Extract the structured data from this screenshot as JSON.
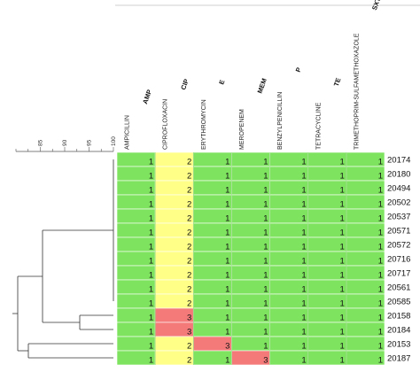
{
  "chart_data": {
    "type": "heatmap",
    "title": "",
    "antibiotics": [
      {
        "abbr": "AMP",
        "name": "AMPICILLIN"
      },
      {
        "abbr": "CIP",
        "name": "CIPROFLOXACIN"
      },
      {
        "abbr": "E",
        "name": "ERYTHROMYCIN"
      },
      {
        "abbr": "MEM",
        "name": "MEROPENEM"
      },
      {
        "abbr": "P",
        "name": "BENZYLPENICILLIN"
      },
      {
        "abbr": "TE",
        "name": "TETRACYCLINE"
      },
      {
        "abbr": "SXT",
        "name": "TRIMETHOPRIM-SULFAMETHOXAZOLE"
      }
    ],
    "isolates": [
      "20174",
      "20180",
      "20494",
      "20502",
      "20537",
      "20571",
      "20572",
      "20716",
      "20717",
      "20561",
      "20585",
      "20158",
      "20184",
      "20153",
      "20187"
    ],
    "values": [
      [
        1,
        2,
        1,
        1,
        1,
        1,
        1
      ],
      [
        1,
        2,
        1,
        1,
        1,
        1,
        1
      ],
      [
        1,
        2,
        1,
        1,
        1,
        1,
        1
      ],
      [
        1,
        2,
        1,
        1,
        1,
        1,
        1
      ],
      [
        1,
        2,
        1,
        1,
        1,
        1,
        1
      ],
      [
        1,
        2,
        1,
        1,
        1,
        1,
        1
      ],
      [
        1,
        2,
        1,
        1,
        1,
        1,
        1
      ],
      [
        1,
        2,
        1,
        1,
        1,
        1,
        1
      ],
      [
        1,
        2,
        1,
        1,
        1,
        1,
        1
      ],
      [
        1,
        2,
        1,
        1,
        1,
        1,
        1
      ],
      [
        1,
        2,
        1,
        1,
        1,
        1,
        1
      ],
      [
        1,
        3,
        1,
        1,
        1,
        1,
        1
      ],
      [
        1,
        3,
        1,
        1,
        1,
        1,
        1
      ],
      [
        1,
        2,
        3,
        1,
        1,
        1,
        1
      ],
      [
        1,
        2,
        1,
        3,
        1,
        1,
        1
      ]
    ],
    "color_scale": {
      "1": "#7ee35f",
      "2": "#ffff88",
      "3": "#f47a7a"
    },
    "dendrogram_axis": {
      "ticks": [
        85,
        90,
        95,
        100
      ],
      "range": [
        80,
        100
      ]
    },
    "grid": true
  }
}
